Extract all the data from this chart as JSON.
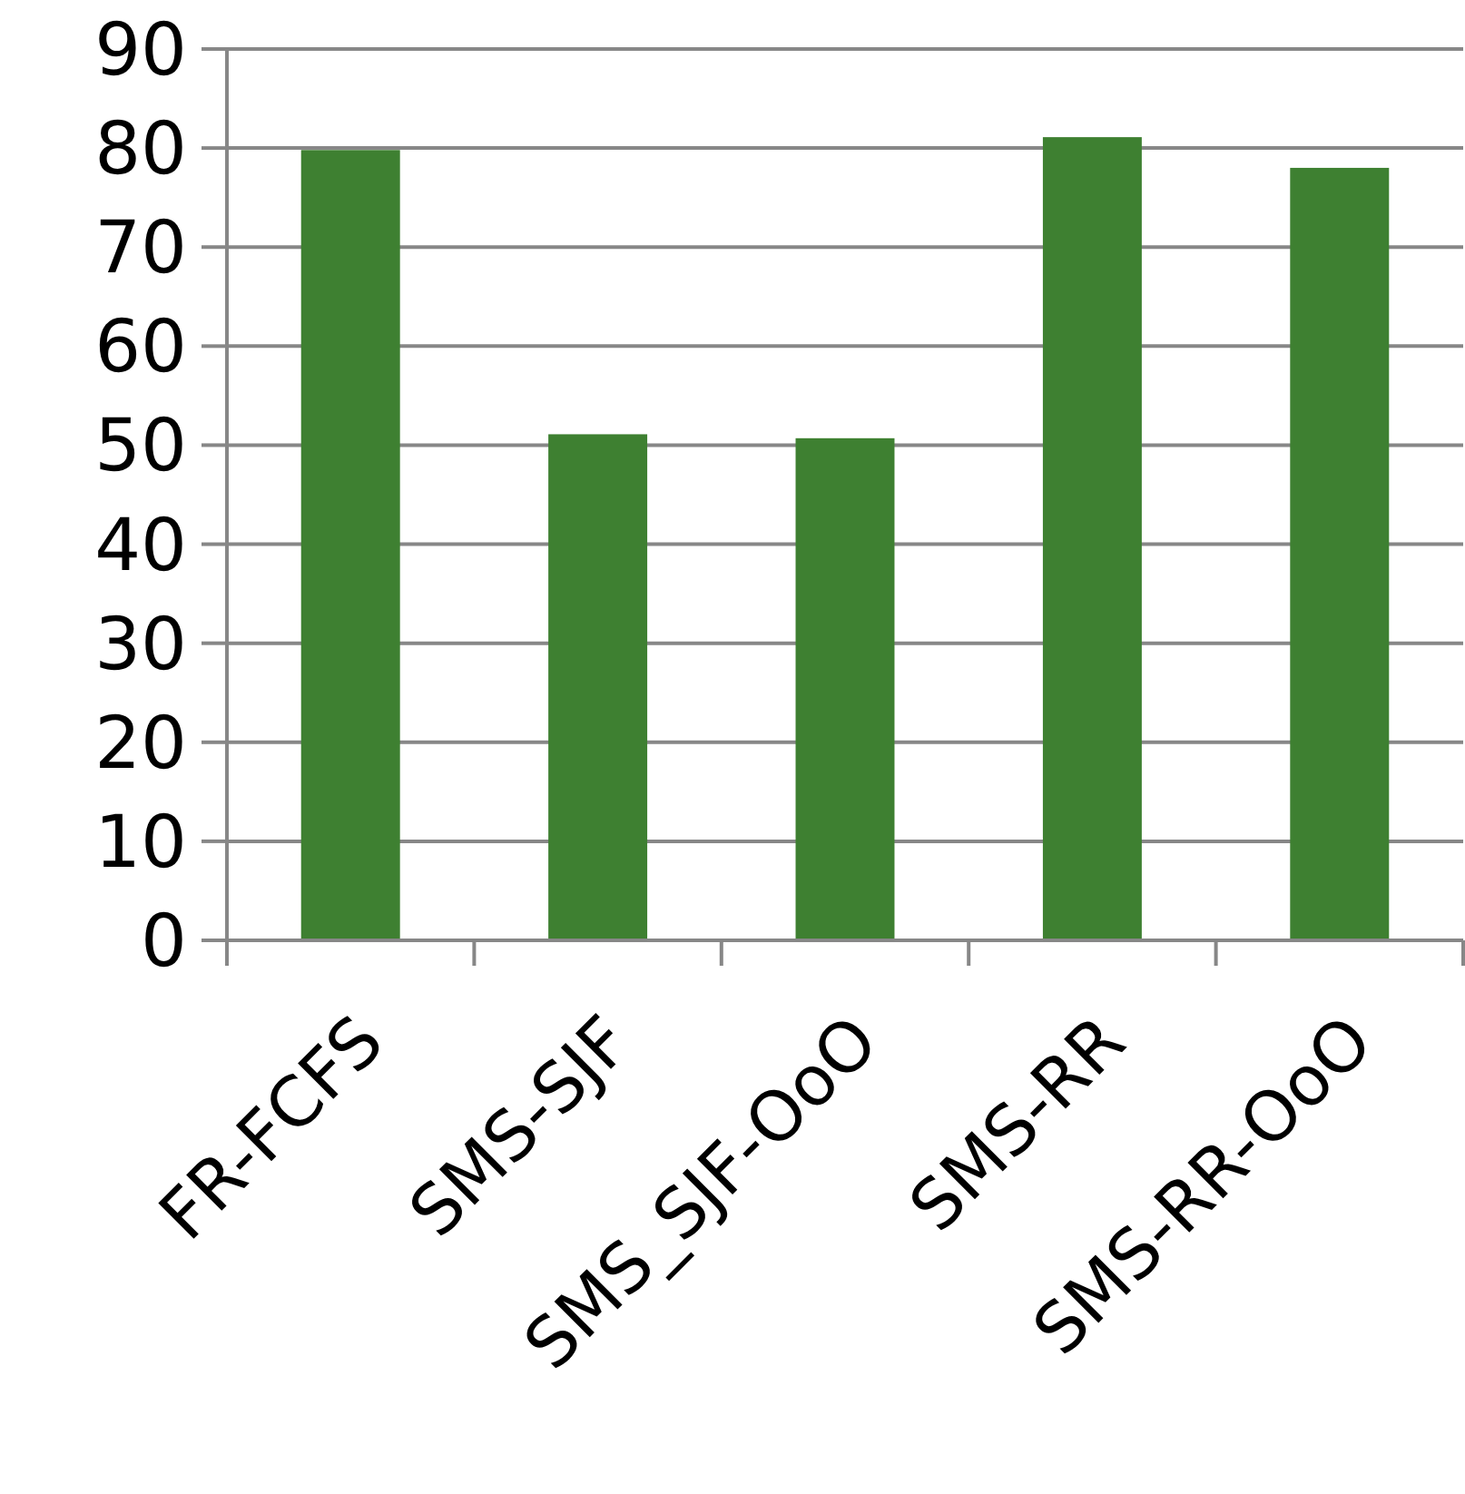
{
  "chart_data": {
    "type": "bar",
    "categories": [
      "FR-FCFS",
      "SMS-SJF",
      "SMS_SJF-OoO",
      "SMS-RR",
      "SMS-RR-OoO"
    ],
    "values": [
      79.8,
      51.1,
      50.7,
      81.1,
      78.0
    ],
    "color": "#3e8031",
    "ylim": [
      0,
      90
    ],
    "yticks": [
      0,
      10,
      20,
      30,
      40,
      50,
      60,
      70,
      80,
      90
    ],
    "grid": "y"
  }
}
